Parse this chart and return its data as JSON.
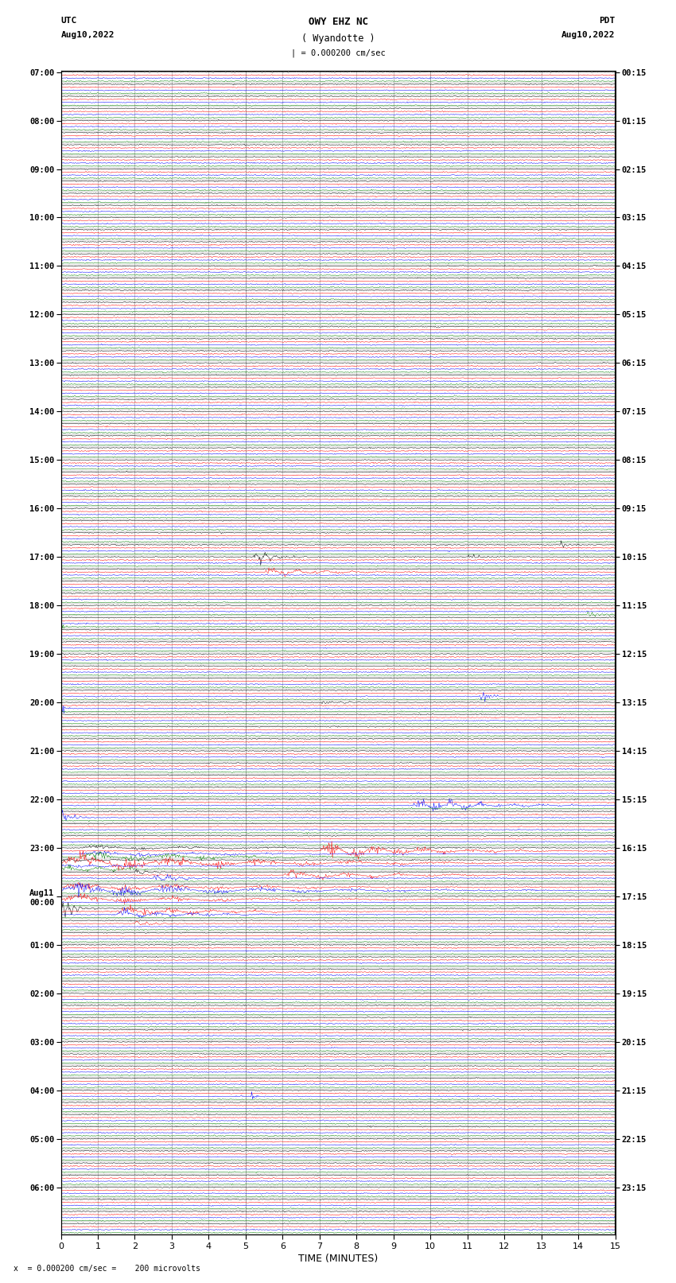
{
  "title_line1": "OWY EHZ NC",
  "title_line2": "( Wyandotte )",
  "title_line3": "| = 0.000200 cm/sec",
  "left_label_line1": "UTC",
  "left_label_line2": "Aug10,2022",
  "right_label_line1": "PDT",
  "right_label_line2": "Aug10,2022",
  "xlabel": "TIME (MINUTES)",
  "footnote": "x  = 0.000200 cm/sec =    200 microvolts",
  "xlim": [
    0,
    15
  ],
  "xticks": [
    0,
    1,
    2,
    3,
    4,
    5,
    6,
    7,
    8,
    9,
    10,
    11,
    12,
    13,
    14,
    15
  ],
  "trace_colors": [
    "black",
    "red",
    "blue",
    "green"
  ],
  "background_color": "white",
  "grid_color": "#999999",
  "noise_amplitude": 0.08,
  "n_segments": 96,
  "utc_hour_labels": [
    "07:00",
    "08:00",
    "09:00",
    "10:00",
    "11:00",
    "12:00",
    "13:00",
    "14:00",
    "15:00",
    "16:00",
    "17:00",
    "18:00",
    "19:00",
    "20:00",
    "21:00",
    "22:00",
    "23:00",
    "Aug11\n00:00",
    "01:00",
    "02:00",
    "03:00",
    "04:00",
    "05:00",
    "06:00"
  ],
  "pdt_hour_labels": [
    "00:15",
    "01:15",
    "02:15",
    "03:15",
    "04:15",
    "05:15",
    "06:15",
    "07:15",
    "08:15",
    "09:15",
    "10:15",
    "11:15",
    "12:15",
    "13:15",
    "14:15",
    "15:15",
    "16:15",
    "17:15",
    "18:15",
    "19:15",
    "20:15",
    "21:15",
    "22:15",
    "23:15"
  ],
  "special_events": [
    {
      "seg": 39,
      "color": "black",
      "t0": 13.5,
      "t1": 14.2,
      "amp": 1.5
    },
    {
      "seg": 40,
      "color": "black",
      "t0": 5.2,
      "t1": 6.8,
      "amp": 2.5
    },
    {
      "seg": 40,
      "color": "black",
      "t0": 11.0,
      "t1": 11.8,
      "amp": 1.2
    },
    {
      "seg": 41,
      "color": "red",
      "t0": 5.5,
      "t1": 10.0,
      "amp": 1.5
    },
    {
      "seg": 44,
      "color": "green",
      "t0": 14.2,
      "t1": 15.0,
      "amp": 1.8
    },
    {
      "seg": 45,
      "color": "green",
      "t0": 0.0,
      "t1": 0.3,
      "amp": 1.8
    },
    {
      "seg": 51,
      "color": "blue",
      "t0": 11.3,
      "t1": 11.9,
      "amp": 3.0
    },
    {
      "seg": 52,
      "color": "blue",
      "t0": 0.0,
      "t1": 0.3,
      "amp": 3.0
    },
    {
      "seg": 52,
      "color": "black",
      "t0": 7.0,
      "t1": 8.5,
      "amp": 1.0
    },
    {
      "seg": 60,
      "color": "blue",
      "t0": 9.5,
      "t1": 14.5,
      "amp": 2.5
    },
    {
      "seg": 61,
      "color": "blue",
      "t0": 0.0,
      "t1": 1.0,
      "amp": 2.5
    },
    {
      "seg": 64,
      "color": "red",
      "t0": 7.0,
      "t1": 14.5,
      "amp": 3.0
    },
    {
      "seg": 64,
      "color": "green",
      "t0": 0.5,
      "t1": 12.5,
      "amp": 1.5
    },
    {
      "seg": 64,
      "color": "blue",
      "t0": 0.5,
      "t1": 14.5,
      "amp": 0.8
    },
    {
      "seg": 64,
      "color": "black",
      "t0": 0.5,
      "t1": 14.5,
      "amp": 0.8
    },
    {
      "seg": 65,
      "color": "red",
      "t0": 0.0,
      "t1": 14.5,
      "amp": 3.0
    },
    {
      "seg": 65,
      "color": "green",
      "t0": 0.0,
      "t1": 5.0,
      "amp": 1.5
    },
    {
      "seg": 65,
      "color": "blue",
      "t0": 0.0,
      "t1": 4.0,
      "amp": 0.8
    },
    {
      "seg": 65,
      "color": "black",
      "t0": 0.0,
      "t1": 4.0,
      "amp": 0.8
    },
    {
      "seg": 66,
      "color": "black",
      "t0": 2.0,
      "t1": 3.5,
      "amp": 1.0
    },
    {
      "seg": 66,
      "color": "blue",
      "t0": 2.5,
      "t1": 4.5,
      "amp": 1.8
    },
    {
      "seg": 66,
      "color": "red",
      "t0": 6.0,
      "t1": 14.5,
      "amp": 1.5
    },
    {
      "seg": 67,
      "color": "red",
      "t0": 0.0,
      "t1": 14.5,
      "amp": 1.5
    },
    {
      "seg": 67,
      "color": "blue",
      "t0": 0.0,
      "t1": 14.5,
      "amp": 2.5
    },
    {
      "seg": 68,
      "color": "red",
      "t0": 0.0,
      "t1": 14.5,
      "amp": 1.5
    },
    {
      "seg": 69,
      "color": "black",
      "t0": 0.0,
      "t1": 1.0,
      "amp": 3.5
    },
    {
      "seg": 69,
      "color": "red",
      "t0": 1.5,
      "t1": 8.5,
      "amp": 1.8
    },
    {
      "seg": 69,
      "color": "blue",
      "t0": 1.5,
      "t1": 7.0,
      "amp": 1.5
    },
    {
      "seg": 70,
      "color": "red",
      "t0": 2.0,
      "t1": 3.5,
      "amp": 1.0
    },
    {
      "seg": 84,
      "color": "blue",
      "t0": 5.1,
      "t1": 5.4,
      "amp": 3.0
    }
  ]
}
